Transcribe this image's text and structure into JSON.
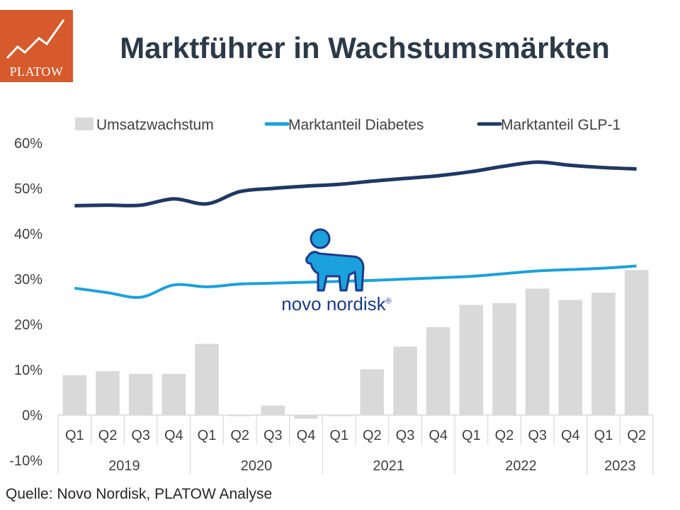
{
  "header": {
    "title": "Marktführer in Wachstumsmärkten",
    "logo_text": "PLATOW"
  },
  "watermark": {
    "text": "novo nordisk",
    "mark": "®"
  },
  "source": "Quelle: Novo Nordisk, PLATOW Analyse",
  "colors": {
    "bar": "#d9d9d9",
    "diabetes": "#1ba1dc",
    "glp1": "#1f3864",
    "logo_bg": "#d65a2c"
  },
  "chart_data": {
    "type": "bar",
    "title": "Marktführer in Wachstumsmärkten",
    "categories": [
      "Q1",
      "Q2",
      "Q3",
      "Q4",
      "Q1",
      "Q2",
      "Q3",
      "Q4",
      "Q1",
      "Q2",
      "Q3",
      "Q4",
      "Q1",
      "Q2",
      "Q3",
      "Q4",
      "Q1",
      "Q2"
    ],
    "years": [
      "2019",
      "2020",
      "2021",
      "2022",
      "2023"
    ],
    "series": [
      {
        "name": "Umsatzwachstum",
        "type": "bar",
        "values": [
          8.8,
          9.7,
          9.1,
          9.1,
          15.7,
          -0.2,
          2.1,
          -0.8,
          0.0,
          10.1,
          15.1,
          19.4,
          24.3,
          24.7,
          27.9,
          25.4,
          27.0,
          32.0
        ]
      },
      {
        "name": "Marktanteil Diabetes",
        "type": "line",
        "values": [
          28.0,
          27.0,
          26.0,
          28.7,
          28.3,
          28.9,
          29.1,
          29.3,
          29.5,
          29.7,
          30.0,
          30.3,
          30.6,
          31.2,
          31.8,
          32.1,
          32.4,
          32.9
        ]
      },
      {
        "name": "Marktanteil GLP-1",
        "type": "line",
        "values": [
          46.2,
          46.3,
          46.3,
          47.7,
          46.6,
          49.3,
          50.0,
          50.5,
          50.9,
          51.6,
          52.2,
          52.8,
          53.7,
          54.9,
          55.8,
          55.1,
          54.6,
          54.3
        ]
      }
    ],
    "ylim": [
      -10,
      60
    ],
    "yticks": [
      -10,
      0,
      10,
      20,
      30,
      40,
      50,
      60
    ],
    "ytick_labels": [
      "-10%",
      "0%",
      "10%",
      "20%",
      "30%",
      "40%",
      "50%",
      "60%"
    ],
    "legend_position": "top",
    "grid": false
  }
}
